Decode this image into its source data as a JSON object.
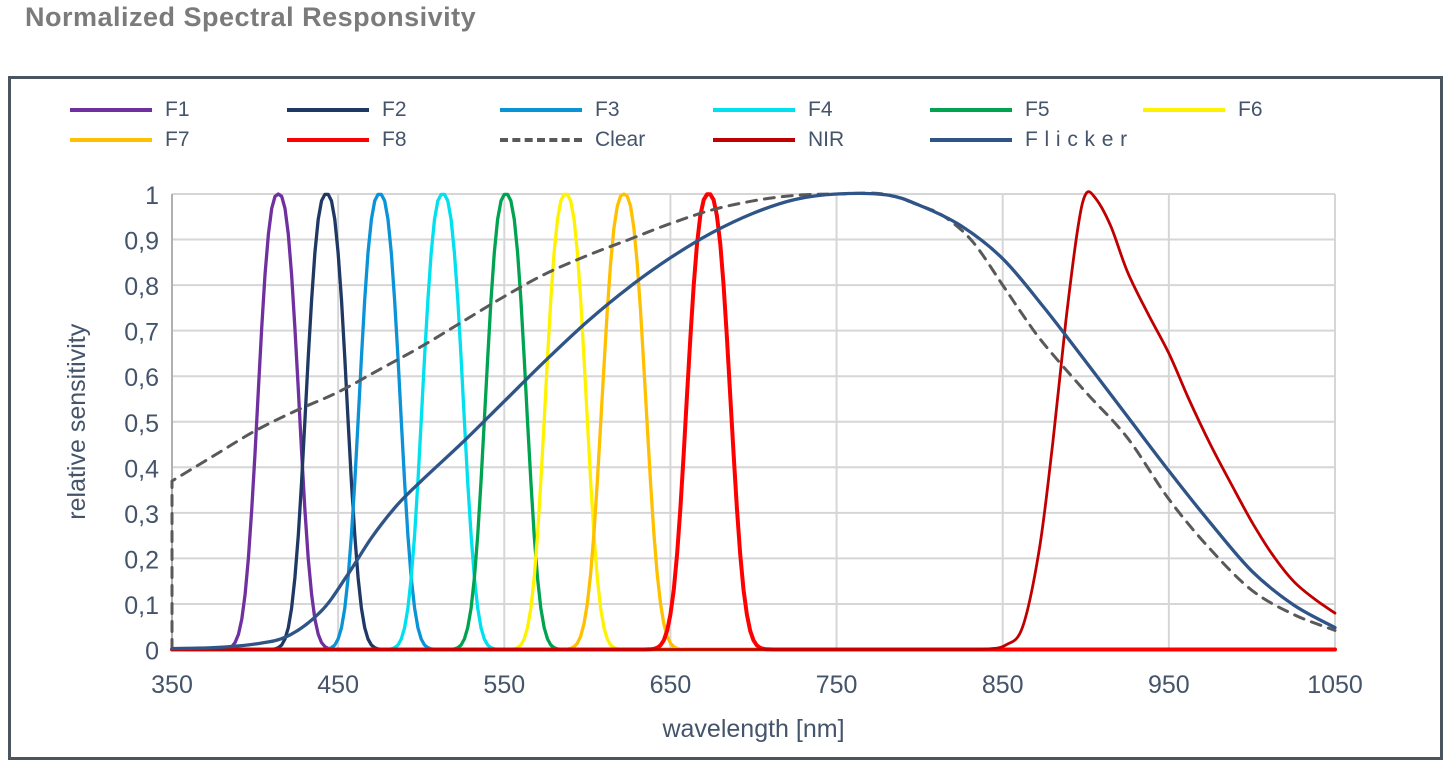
{
  "page": {
    "title": "Normalized Spectral Responsivity"
  },
  "colors": {
    "title_text": "#7b7b7b",
    "axis_text": "#44546a",
    "gridline": "#d6d6d6",
    "axis_line": "#b0b0b0",
    "chart_border": "#4a5560"
  },
  "legend": {
    "items": [
      {
        "label": "F1",
        "color": "#7030A0",
        "dash": false,
        "spaced": false
      },
      {
        "label": "F2",
        "color": "#1F3864",
        "dash": false,
        "spaced": false
      },
      {
        "label": "F3",
        "color": "#0B93D8",
        "dash": false,
        "spaced": false
      },
      {
        "label": "F4",
        "color": "#00E0EE",
        "dash": false,
        "spaced": false
      },
      {
        "label": "F5",
        "color": "#00A350",
        "dash": false,
        "spaced": false
      },
      {
        "label": "F6",
        "color": "#FFF200",
        "dash": false,
        "spaced": false
      },
      {
        "label": "F7",
        "color": "#FFC000",
        "dash": false,
        "spaced": false
      },
      {
        "label": "F8",
        "color": "#FF0000",
        "dash": false,
        "spaced": false
      },
      {
        "label": "Clear",
        "color": "#595959",
        "dash": true,
        "spaced": false
      },
      {
        "label": "NIR",
        "color": "#C00000",
        "dash": false,
        "spaced": false
      },
      {
        "label": "Flicker",
        "color": "#2F5488",
        "dash": false,
        "spaced": true
      }
    ]
  },
  "chart_data": {
    "type": "line",
    "title": "Normalized Spectral Responsivity",
    "xlabel": "wavelength [nm]",
    "ylabel": "relative sensitivity",
    "xlim": [
      350,
      1050
    ],
    "ylim": [
      0,
      1
    ],
    "grid": true,
    "legend_position": "top",
    "x_ticks": [
      350,
      450,
      550,
      650,
      750,
      850,
      950,
      1050
    ],
    "y_ticks": [
      {
        "value": 0.0,
        "label": "0"
      },
      {
        "value": 0.1,
        "label": "0,1"
      },
      {
        "value": 0.2,
        "label": "0,2"
      },
      {
        "value": 0.3,
        "label": "0,3"
      },
      {
        "value": 0.4,
        "label": "0,4"
      },
      {
        "value": 0.5,
        "label": "0,5"
      },
      {
        "value": 0.6,
        "label": "0,6"
      },
      {
        "value": 0.7,
        "label": "0,7"
      },
      {
        "value": 0.8,
        "label": "0,8"
      },
      {
        "value": 0.9,
        "label": "0,9"
      },
      {
        "value": 1.0,
        "label": "1"
      }
    ],
    "series": [
      {
        "name": "F1",
        "color": "#7030A0",
        "style": "solid",
        "width": 3.3,
        "model": "peak",
        "center_nm": 414,
        "fwhm_nm": 26,
        "shape_w": 15,
        "shape_n": 2.6,
        "peak_value": 1.0
      },
      {
        "name": "F2",
        "color": "#1F3864",
        "style": "solid",
        "width": 3.3,
        "model": "peak",
        "center_nm": 443,
        "fwhm_nm": 26,
        "shape_w": 15,
        "shape_n": 2.6,
        "peak_value": 1.0
      },
      {
        "name": "F3",
        "color": "#0B93D8",
        "style": "solid",
        "width": 3.3,
        "model": "peak",
        "center_nm": 475,
        "fwhm_nm": 26,
        "shape_w": 15,
        "shape_n": 2.6,
        "peak_value": 1.0
      },
      {
        "name": "F4",
        "color": "#00E0EE",
        "style": "solid",
        "width": 3.3,
        "model": "peak",
        "center_nm": 513,
        "fwhm_nm": 26,
        "shape_w": 15,
        "shape_n": 2.6,
        "peak_value": 1.0
      },
      {
        "name": "F5",
        "color": "#00A350",
        "style": "solid",
        "width": 3.3,
        "model": "peak",
        "center_nm": 551,
        "fwhm_nm": 26,
        "shape_w": 15,
        "shape_n": 2.6,
        "peak_value": 1.0
      },
      {
        "name": "F6",
        "color": "#FFF200",
        "style": "solid",
        "width": 3.3,
        "model": "peak",
        "center_nm": 587,
        "fwhm_nm": 26,
        "shape_w": 15,
        "shape_n": 2.6,
        "peak_value": 1.0
      },
      {
        "name": "F7",
        "color": "#FFC000",
        "style": "solid",
        "width": 3.3,
        "model": "peak",
        "center_nm": 622,
        "fwhm_nm": 28,
        "shape_w": 16,
        "shape_n": 2.6,
        "peak_value": 1.0
      },
      {
        "name": "F8",
        "color": "#FF0000",
        "style": "solid",
        "width": 4.0,
        "model": "peak",
        "center_nm": 673,
        "fwhm_nm": 28,
        "shape_w": 16,
        "shape_n": 2.6,
        "peak_value": 1.0
      },
      {
        "name": "Clear",
        "color": "#595959",
        "style": "dashed",
        "width": 3.0,
        "start_drop": true,
        "model": "points",
        "points": [
          [
            350,
            0.37
          ],
          [
            375,
            0.425
          ],
          [
            400,
            0.48
          ],
          [
            425,
            0.525
          ],
          [
            450,
            0.565
          ],
          [
            475,
            0.615
          ],
          [
            500,
            0.665
          ],
          [
            525,
            0.72
          ],
          [
            550,
            0.775
          ],
          [
            575,
            0.825
          ],
          [
            600,
            0.865
          ],
          [
            625,
            0.9
          ],
          [
            650,
            0.935
          ],
          [
            675,
            0.965
          ],
          [
            700,
            0.985
          ],
          [
            725,
            0.997
          ],
          [
            750,
            1.0
          ],
          [
            778,
            1.0
          ],
          [
            800,
            0.975
          ],
          [
            815,
            0.95
          ],
          [
            832,
            0.895
          ],
          [
            850,
            0.8
          ],
          [
            862,
            0.735
          ],
          [
            875,
            0.67
          ],
          [
            900,
            0.565
          ],
          [
            925,
            0.465
          ],
          [
            950,
            0.33
          ],
          [
            975,
            0.22
          ],
          [
            1000,
            0.13
          ],
          [
            1025,
            0.077
          ],
          [
            1050,
            0.042
          ]
        ]
      },
      {
        "name": "NIR",
        "color": "#C00000",
        "style": "solid",
        "width": 2.8,
        "model": "points",
        "points": [
          [
            350,
            0
          ],
          [
            450,
            0
          ],
          [
            550,
            0
          ],
          [
            650,
            0
          ],
          [
            750,
            0
          ],
          [
            820,
            0
          ],
          [
            840,
            0.001
          ],
          [
            852,
            0.01
          ],
          [
            862,
            0.05
          ],
          [
            872,
            0.22
          ],
          [
            880,
            0.45
          ],
          [
            888,
            0.72
          ],
          [
            895,
            0.92
          ],
          [
            900,
            1.0
          ],
          [
            906,
            0.99
          ],
          [
            915,
            0.93
          ],
          [
            925,
            0.83
          ],
          [
            937,
            0.74
          ],
          [
            950,
            0.65
          ],
          [
            962,
            0.55
          ],
          [
            975,
            0.45
          ],
          [
            988,
            0.36
          ],
          [
            1000,
            0.28
          ],
          [
            1012,
            0.21
          ],
          [
            1025,
            0.15
          ],
          [
            1038,
            0.11
          ],
          [
            1050,
            0.08
          ]
        ]
      },
      {
        "name": "Flicker",
        "color": "#2F5488",
        "style": "solid",
        "width": 3.3,
        "model": "points",
        "points": [
          [
            350,
            0.002
          ],
          [
            375,
            0.004
          ],
          [
            400,
            0.012
          ],
          [
            420,
            0.03
          ],
          [
            440,
            0.085
          ],
          [
            455,
            0.16
          ],
          [
            470,
            0.245
          ],
          [
            485,
            0.315
          ],
          [
            500,
            0.37
          ],
          [
            525,
            0.455
          ],
          [
            550,
            0.545
          ],
          [
            575,
            0.635
          ],
          [
            600,
            0.72
          ],
          [
            625,
            0.795
          ],
          [
            650,
            0.86
          ],
          [
            675,
            0.915
          ],
          [
            700,
            0.958
          ],
          [
            725,
            0.988
          ],
          [
            750,
            1.0
          ],
          [
            780,
            0.998
          ],
          [
            800,
            0.975
          ],
          [
            825,
            0.93
          ],
          [
            850,
            0.858
          ],
          [
            875,
            0.75
          ],
          [
            900,
            0.632
          ],
          [
            925,
            0.512
          ],
          [
            950,
            0.392
          ],
          [
            975,
            0.278
          ],
          [
            1000,
            0.172
          ],
          [
            1025,
            0.098
          ],
          [
            1050,
            0.048
          ]
        ]
      }
    ]
  }
}
